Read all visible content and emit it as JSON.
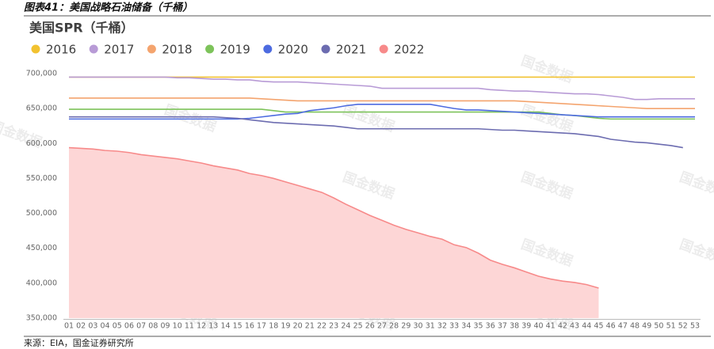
{
  "caption": "图表41：美国战略石油储备（千桶）",
  "source": "来源：EIA，国金证券研究所",
  "watermark": "国金数据",
  "chart_data": {
    "type": "line",
    "title": "美国SPR（千桶）",
    "categories": [
      "01",
      "02",
      "03",
      "04",
      "05",
      "06",
      "07",
      "08",
      "09",
      "10",
      "11",
      "12",
      "13",
      "14",
      "15",
      "16",
      "17",
      "18",
      "19",
      "20",
      "21",
      "22",
      "23",
      "24",
      "25",
      "26",
      "27",
      "28",
      "29",
      "30",
      "31",
      "32",
      "33",
      "34",
      "35",
      "36",
      "37",
      "38",
      "39",
      "40",
      "41",
      "42",
      "43",
      "44",
      "45",
      "46",
      "47",
      "48",
      "49",
      "50",
      "51",
      "52",
      "53"
    ],
    "ylim": [
      350000,
      700000
    ],
    "yticks": [
      {
        "value": 350000,
        "label": "350,000"
      },
      {
        "value": 400000,
        "label": "400,000"
      },
      {
        "value": 450000,
        "label": "450,000"
      },
      {
        "value": 500000,
        "label": "500,000"
      },
      {
        "value": 550000,
        "label": "550,000"
      },
      {
        "value": 600000,
        "label": "600,000"
      },
      {
        "value": 650000,
        "label": "650,000"
      },
      {
        "value": 700000,
        "label": "700,000"
      }
    ],
    "legend": "top",
    "series": [
      {
        "name": "2016",
        "color": "#f2c230",
        "values": [
          695000,
          695000,
          695000,
          695000,
          695000,
          695000,
          695000,
          695000,
          695000,
          695000,
          695000,
          695000,
          695000,
          695000,
          695000,
          695000,
          695000,
          695000,
          695000,
          695000,
          695000,
          695000,
          695000,
          695000,
          695000,
          695000,
          695000,
          695000,
          695000,
          695000,
          695000,
          695000,
          695000,
          695000,
          695000,
          695000,
          695000,
          695000,
          695000,
          695000,
          695000,
          695000,
          695000,
          695000,
          695000,
          695000,
          695000,
          695000,
          695000,
          695000,
          695000,
          695000,
          695000
        ]
      },
      {
        "name": "2017",
        "color": "#b89bd6",
        "values": [
          695000,
          695000,
          695000,
          695000,
          695000,
          695000,
          695000,
          695000,
          695000,
          694000,
          694000,
          693000,
          692000,
          692000,
          691000,
          691000,
          689000,
          688000,
          688000,
          688000,
          687000,
          686000,
          685000,
          684000,
          683000,
          682000,
          679000,
          679000,
          679000,
          679000,
          679000,
          679000,
          679000,
          679000,
          679000,
          677000,
          676000,
          675000,
          675000,
          674000,
          673000,
          672000,
          671000,
          671000,
          670000,
          668000,
          666000,
          663000,
          663000,
          664000,
          664000,
          664000,
          664000
        ]
      },
      {
        "name": "2018",
        "color": "#f4a46e",
        "values": [
          665000,
          665000,
          665000,
          665000,
          665000,
          665000,
          665000,
          665000,
          665000,
          665000,
          665000,
          665000,
          665000,
          665000,
          665000,
          665000,
          664000,
          663000,
          662000,
          661000,
          661000,
          661000,
          661000,
          661000,
          661000,
          661000,
          661000,
          661000,
          661000,
          661000,
          661000,
          661000,
          661000,
          661000,
          661000,
          661000,
          661000,
          661000,
          660000,
          659000,
          658000,
          657000,
          656000,
          655000,
          654000,
          653000,
          652000,
          651000,
          650000,
          650000,
          650000,
          650000,
          650000
        ]
      },
      {
        "name": "2019",
        "color": "#7dc35a",
        "values": [
          649000,
          649000,
          649000,
          649000,
          649000,
          649000,
          649000,
          649000,
          649000,
          649000,
          649000,
          649000,
          649000,
          649000,
          649000,
          649000,
          649000,
          647000,
          645000,
          645000,
          645000,
          645000,
          645000,
          645000,
          645000,
          645000,
          645000,
          645000,
          645000,
          645000,
          645000,
          645000,
          645000,
          645000,
          645000,
          645000,
          645000,
          645000,
          645000,
          645000,
          643000,
          641000,
          640000,
          638000,
          636000,
          635000,
          635000,
          635000,
          635000,
          635000,
          635000,
          635000,
          635000
        ]
      },
      {
        "name": "2020",
        "color": "#4d6be0",
        "values": [
          635000,
          635000,
          635000,
          635000,
          635000,
          635000,
          635000,
          635000,
          635000,
          635000,
          635000,
          635000,
          635000,
          635000,
          635000,
          636000,
          638000,
          640000,
          642000,
          643000,
          647000,
          649000,
          651000,
          654000,
          656000,
          656000,
          656000,
          656000,
          656000,
          656000,
          656000,
          653000,
          650000,
          648000,
          648000,
          647000,
          646000,
          645000,
          644000,
          643000,
          642000,
          641000,
          640000,
          639000,
          638000,
          638000,
          638000,
          638000,
          638000,
          638000,
          638000,
          638000,
          638000
        ]
      },
      {
        "name": "2021",
        "color": "#6c6cb0",
        "values": [
          638000,
          638000,
          638000,
          638000,
          638000,
          638000,
          638000,
          638000,
          638000,
          638000,
          638000,
          638000,
          638000,
          637000,
          636000,
          634000,
          632000,
          630000,
          629000,
          628000,
          627000,
          626000,
          625000,
          623000,
          621000,
          621000,
          621000,
          621000,
          621000,
          621000,
          621000,
          621000,
          621000,
          621000,
          621000,
          620000,
          619000,
          619000,
          618000,
          617000,
          616000,
          615000,
          614000,
          612000,
          610000,
          606000,
          604000,
          602000,
          601000,
          599000,
          597000,
          594000,
          null
        ]
      },
      {
        "name": "2022",
        "color": "#f78a8a",
        "fill": "#fdd6d6",
        "values": [
          594000,
          593000,
          592000,
          590000,
          589000,
          587000,
          584000,
          582000,
          580000,
          578000,
          575000,
          572000,
          568000,
          565000,
          562000,
          557000,
          554000,
          550000,
          545000,
          540000,
          535000,
          530000,
          522000,
          513000,
          505000,
          497000,
          490000,
          483000,
          477000,
          472000,
          467000,
          463000,
          455000,
          451000,
          443000,
          433000,
          427000,
          422000,
          416000,
          410000,
          406000,
          403000,
          401000,
          398000,
          393000,
          null,
          null,
          null,
          null,
          null,
          null,
          null,
          null
        ]
      }
    ]
  }
}
